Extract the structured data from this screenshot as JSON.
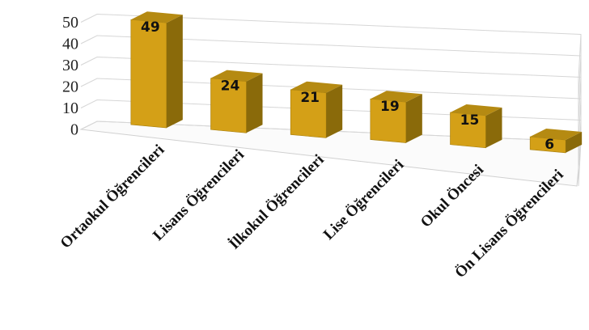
{
  "chart_data": {
    "type": "bar",
    "title": "",
    "xlabel": "",
    "ylabel": "",
    "categories": [
      "Ortaokul Öğrencileri",
      "Lisans Öğrencileri",
      "İlkokul Öğrencileri",
      "Lise Öğrencileri",
      "Okul Öncesi",
      "Ön Lisans Öğrencileri"
    ],
    "values": [
      49,
      24,
      21,
      19,
      15,
      6
    ],
    "ylim": [
      0,
      50
    ],
    "yticks": [
      0,
      10,
      20,
      30,
      40,
      50
    ],
    "grid": true,
    "legend": "none",
    "style": "3d-perspective",
    "colors": {
      "front": "#d4a017",
      "side": "#8a6a0a",
      "top": "#b58a12"
    }
  }
}
